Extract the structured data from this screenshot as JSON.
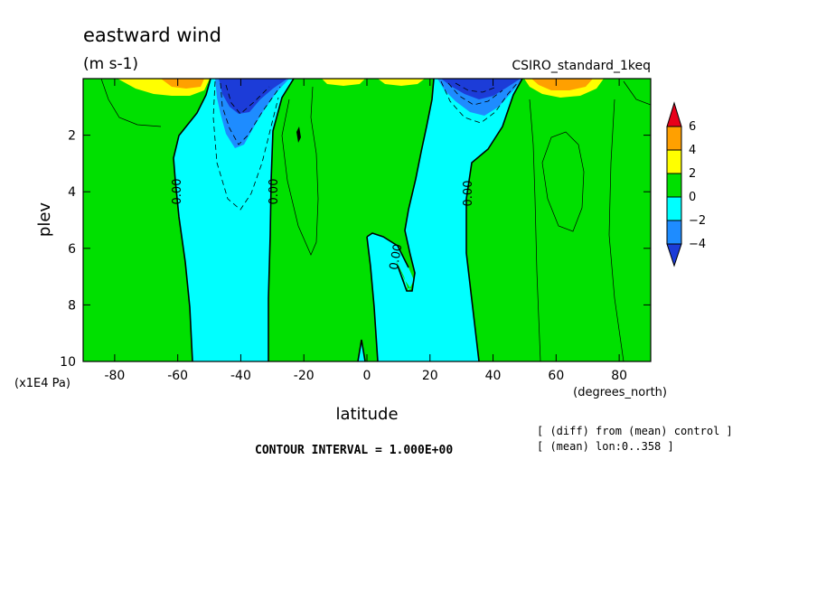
{
  "chart_data": {
    "type": "heatmap",
    "title": "eastward wind",
    "units": "(m s-1)",
    "subtitle_right": "CSIRO_standard_1keq",
    "xlabel": "latitude",
    "xunits": "(degrees_north)",
    "ylabel": "plev",
    "yunits": "(x1E4 Pa)",
    "xlim": [
      -90,
      90
    ],
    "ylim": [
      10,
      0
    ],
    "x_ticks": [
      "-80",
      "-60",
      "-40",
      "-20",
      "0",
      "20",
      "40",
      "60",
      "80"
    ],
    "x_tick_values": [
      -80,
      -60,
      -40,
      -20,
      0,
      20,
      40,
      60,
      80
    ],
    "y_ticks": [
      "2",
      "4",
      "6",
      "8",
      "10"
    ],
    "y_tick_values": [
      2,
      4,
      6,
      8,
      10
    ],
    "colorbar": {
      "labels": [
        "6",
        "4",
        "2",
        "0",
        "−2",
        "−4"
      ],
      "levels": [
        6,
        4,
        2,
        0,
        -2,
        -4
      ],
      "colors": [
        "#e8001a",
        "#ffa000",
        "#ffff00",
        "#00e000",
        "#00ffff",
        "#1e8cff",
        "#1c3cd8"
      ]
    },
    "contour_labels": [
      "0.00",
      "0.00",
      "0.00",
      "0.00"
    ],
    "contour_interval": "CONTOUR INTERVAL = 1.000E+00",
    "notes": [
      "[ (diff) from (mean) control ]",
      "[ (mean) lon:0..358 ]"
    ]
  }
}
